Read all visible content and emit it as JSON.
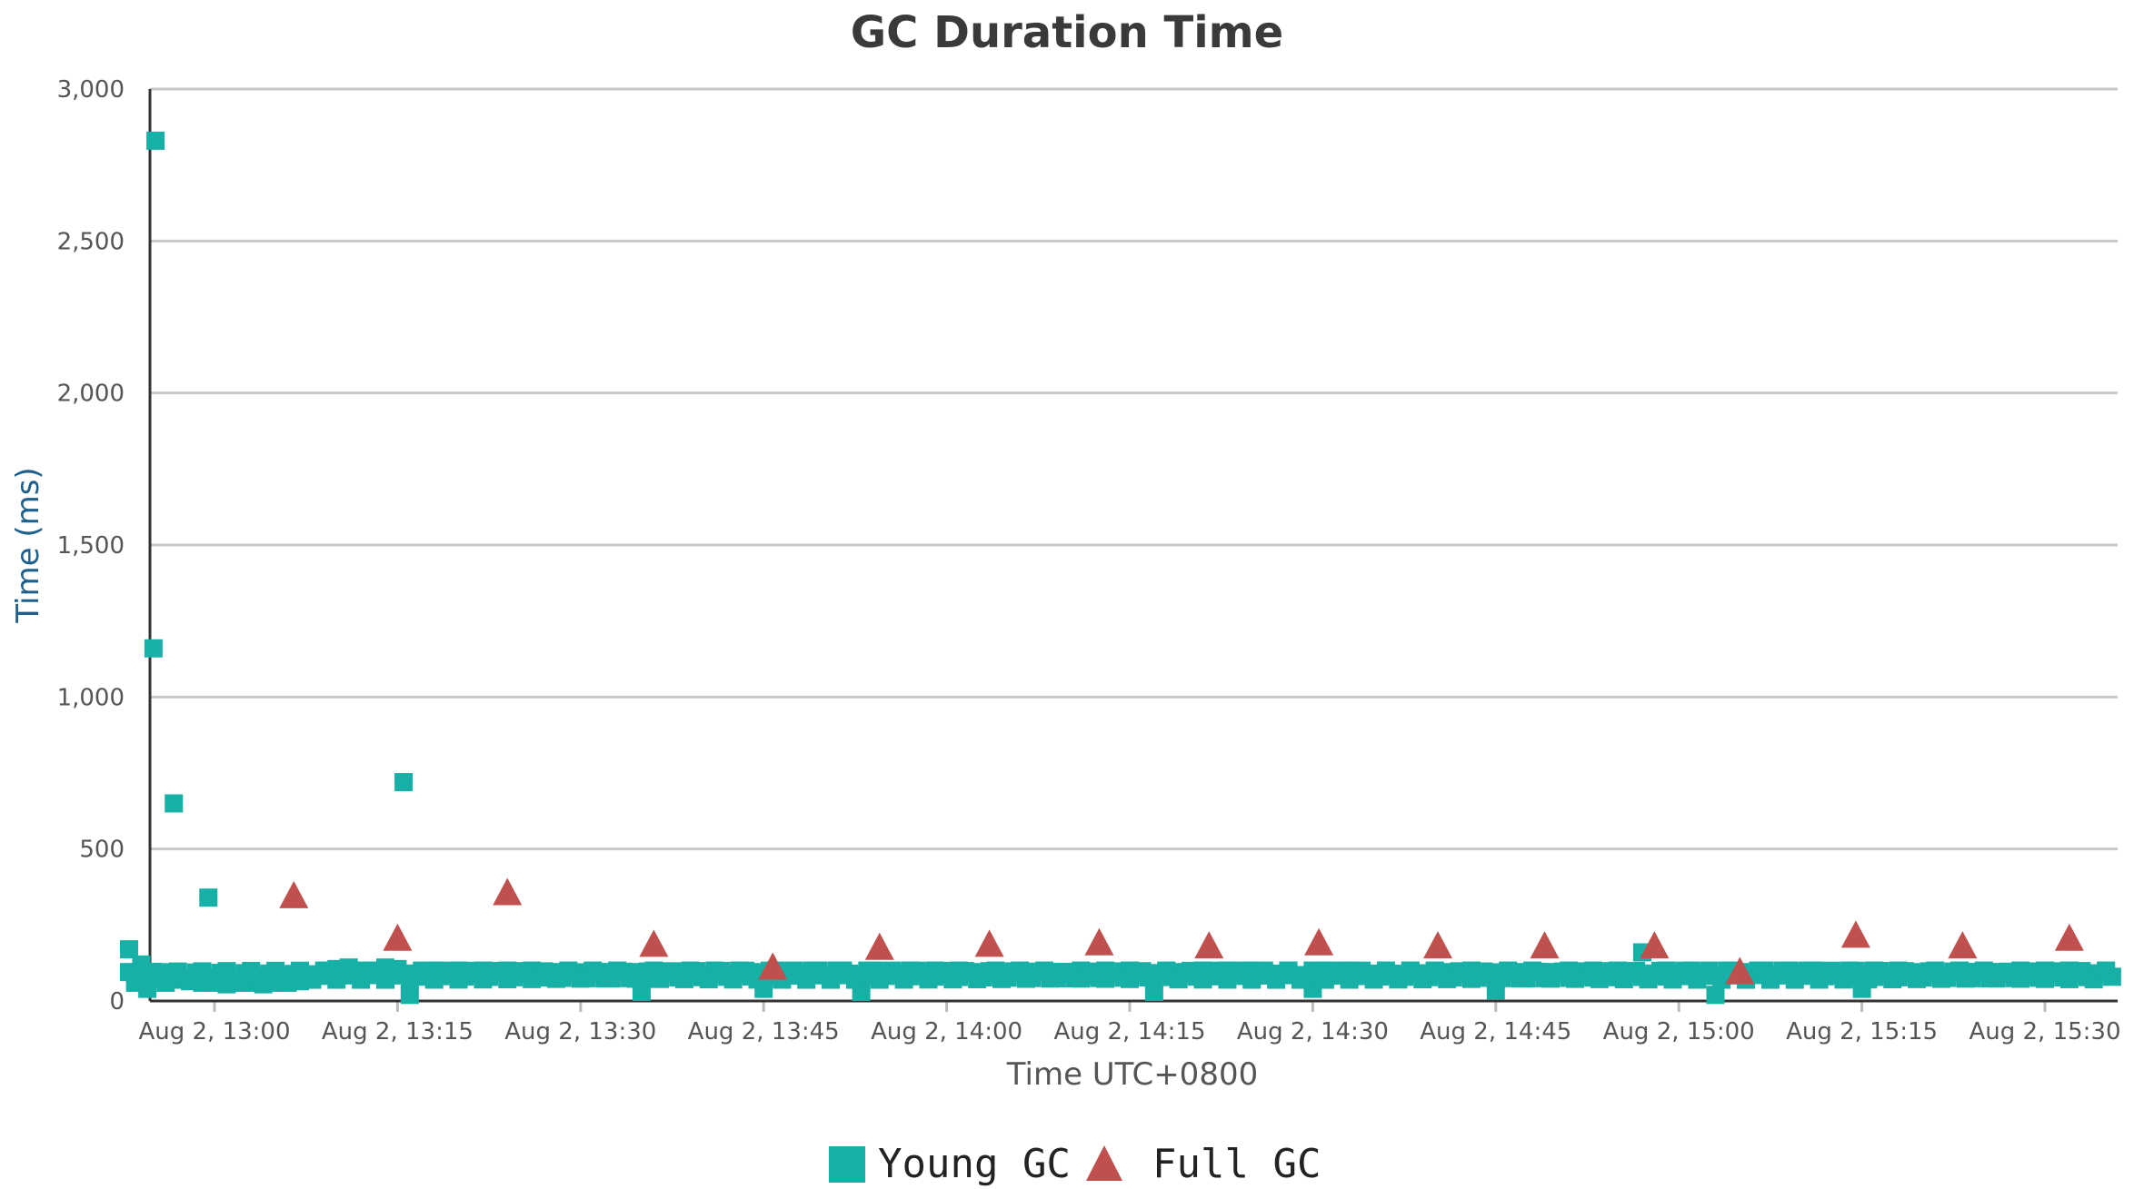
{
  "chart_data": {
    "type": "scatter",
    "title": "GC Duration Time",
    "xlabel": "Time UTC+0800",
    "ylabel": "Time (ms)",
    "ylim": [
      0,
      3000
    ],
    "xlim": [
      "12:53",
      "15:36"
    ],
    "grid": true,
    "legend_position": "bottom-center",
    "y_ticks": [
      {
        "value": 0,
        "label": "0"
      },
      {
        "value": 500,
        "label": "500"
      },
      {
        "value": 1000,
        "label": "1,000"
      },
      {
        "value": 1500,
        "label": "1,500"
      },
      {
        "value": 2000,
        "label": "2,000"
      },
      {
        "value": 2500,
        "label": "2,500"
      },
      {
        "value": 3000,
        "label": "3,000"
      }
    ],
    "x_ticks": [
      {
        "value": "13:00",
        "label": "Aug 2, 13:00"
      },
      {
        "value": "13:15",
        "label": "Aug 2, 13:15"
      },
      {
        "value": "13:30",
        "label": "Aug 2, 13:30"
      },
      {
        "value": "13:45",
        "label": "Aug 2, 13:45"
      },
      {
        "value": "14:00",
        "label": "Aug 2, 14:00"
      },
      {
        "value": "14:15",
        "label": "Aug 2, 14:15"
      },
      {
        "value": "14:30",
        "label": "Aug 2, 14:30"
      },
      {
        "value": "14:45",
        "label": "Aug 2, 14:45"
      },
      {
        "value": "15:00",
        "label": "Aug 2, 15:00"
      },
      {
        "value": "15:15",
        "label": "Aug 2, 15:15"
      },
      {
        "value": "15:30",
        "label": "Aug 2, 15:30"
      }
    ],
    "series": [
      {
        "name": "Young GC",
        "marker": "square",
        "color": "#17b0a6",
        "points": [
          [
            "12:53:00",
            170
          ],
          [
            "12:53:30",
            60
          ],
          [
            "12:54:00",
            120
          ],
          [
            "12:54:30",
            40
          ],
          [
            "12:55:00",
            80
          ],
          [
            "12:55:10",
            2830
          ],
          [
            "12:55:00",
            1160
          ],
          [
            "12:56:40",
            650
          ],
          [
            "12:59:30",
            340
          ],
          [
            "12:56:00",
            60
          ],
          [
            "12:57:00",
            70
          ],
          [
            "12:58:00",
            65
          ],
          [
            "12:59:00",
            60
          ],
          [
            "13:00:00",
            60
          ],
          [
            "13:01:00",
            55
          ],
          [
            "13:02:00",
            60
          ],
          [
            "13:03:00",
            60
          ],
          [
            "13:04:00",
            55
          ],
          [
            "13:05:00",
            60
          ],
          [
            "13:06:00",
            60
          ],
          [
            "13:07:00",
            65
          ],
          [
            "13:08:00",
            70
          ],
          [
            "13:09:00",
            100
          ],
          [
            "13:10:00",
            105
          ],
          [
            "13:11:00",
            110
          ],
          [
            "13:12:00",
            100
          ],
          [
            "13:13:00",
            90
          ],
          [
            "13:14:00",
            110
          ],
          [
            "13:15:00",
            105
          ],
          [
            "13:15:30",
            720
          ],
          [
            "13:16:00",
            20
          ],
          [
            "13:16:30",
            90
          ],
          [
            "13:17:00",
            80
          ],
          [
            "13:18:00",
            100
          ],
          [
            "13:19:00",
            95
          ],
          [
            "13:20:00",
            100
          ],
          [
            "13:21:00",
            90
          ],
          [
            "13:22:00",
            100
          ],
          [
            "13:23:00",
            95
          ],
          [
            "13:24:00",
            100
          ],
          [
            "13:25:00",
            90
          ],
          [
            "13:26:00",
            100
          ],
          [
            "13:27:00",
            80
          ],
          [
            "13:28:00",
            95
          ],
          [
            "13:29:00",
            100
          ],
          [
            "13:30:00",
            85
          ],
          [
            "13:31:00",
            100
          ],
          [
            "13:32:00",
            90
          ],
          [
            "13:33:00",
            100
          ],
          [
            "13:34:00",
            95
          ],
          [
            "13:35:00",
            30
          ],
          [
            "13:36:00",
            100
          ],
          [
            "13:37:00",
            95
          ],
          [
            "13:38:00",
            90
          ],
          [
            "13:39:00",
            100
          ],
          [
            "13:40:00",
            85
          ],
          [
            "13:41:00",
            100
          ],
          [
            "13:42:00",
            90
          ],
          [
            "13:43:00",
            100
          ],
          [
            "13:44:00",
            95
          ],
          [
            "13:45:00",
            40
          ],
          [
            "13:46:00",
            100
          ],
          [
            "13:47:00",
            95
          ],
          [
            "13:48:00",
            90
          ],
          [
            "13:49:00",
            100
          ],
          [
            "13:50:00",
            85
          ],
          [
            "13:51:00",
            100
          ],
          [
            "13:52:00",
            90
          ],
          [
            "13:53:00",
            30
          ],
          [
            "13:54:00",
            100
          ],
          [
            "13:55:00",
            95
          ],
          [
            "13:56:00",
            90
          ],
          [
            "13:57:00",
            100
          ],
          [
            "13:58:00",
            85
          ],
          [
            "13:59:00",
            100
          ],
          [
            "14:00:00",
            90
          ],
          [
            "14:01:00",
            100
          ],
          [
            "14:02:00",
            95
          ],
          [
            "14:03:00",
            90
          ],
          [
            "14:04:00",
            100
          ],
          [
            "14:05:00",
            85
          ],
          [
            "14:06:00",
            100
          ],
          [
            "14:07:00",
            90
          ],
          [
            "14:08:00",
            100
          ],
          [
            "14:09:00",
            95
          ],
          [
            "14:10:00",
            90
          ],
          [
            "14:11:00",
            100
          ],
          [
            "14:12:00",
            85
          ],
          [
            "14:13:00",
            100
          ],
          [
            "14:14:00",
            90
          ],
          [
            "14:15:00",
            100
          ],
          [
            "14:16:00",
            95
          ],
          [
            "14:17:00",
            30
          ],
          [
            "14:18:00",
            100
          ],
          [
            "14:19:00",
            95
          ],
          [
            "14:20:00",
            90
          ],
          [
            "14:21:00",
            100
          ],
          [
            "14:22:00",
            85
          ],
          [
            "14:23:00",
            100
          ],
          [
            "14:24:00",
            90
          ],
          [
            "14:25:00",
            100
          ],
          [
            "14:26:00",
            95
          ],
          [
            "14:27:00",
            90
          ],
          [
            "14:28:00",
            100
          ],
          [
            "14:29:00",
            85
          ],
          [
            "14:30:00",
            40
          ],
          [
            "14:31:00",
            100
          ],
          [
            "14:32:00",
            90
          ],
          [
            "14:33:00",
            100
          ],
          [
            "14:34:00",
            95
          ],
          [
            "14:35:00",
            90
          ],
          [
            "14:36:00",
            100
          ],
          [
            "14:37:00",
            85
          ],
          [
            "14:38:00",
            100
          ],
          [
            "14:39:00",
            90
          ],
          [
            "14:40:00",
            100
          ],
          [
            "14:41:00",
            95
          ],
          [
            "14:42:00",
            90
          ],
          [
            "14:43:00",
            100
          ],
          [
            "14:44:00",
            85
          ],
          [
            "14:45:00",
            35
          ],
          [
            "14:46:00",
            100
          ],
          [
            "14:47:00",
            90
          ],
          [
            "14:48:00",
            100
          ],
          [
            "14:49:00",
            95
          ],
          [
            "14:50:00",
            90
          ],
          [
            "14:51:00",
            100
          ],
          [
            "14:52:00",
            85
          ],
          [
            "14:53:00",
            100
          ],
          [
            "14:54:00",
            90
          ],
          [
            "14:55:00",
            100
          ],
          [
            "14:56:00",
            95
          ],
          [
            "14:57:00",
            160
          ],
          [
            "14:58:00",
            90
          ],
          [
            "14:59:00",
            100
          ],
          [
            "15:00:00",
            85
          ],
          [
            "15:01:00",
            100
          ],
          [
            "15:02:00",
            90
          ],
          [
            "15:03:00",
            20
          ],
          [
            "15:04:00",
            100
          ],
          [
            "15:05:00",
            95
          ],
          [
            "15:06:00",
            90
          ],
          [
            "15:07:00",
            100
          ],
          [
            "15:08:00",
            85
          ],
          [
            "15:09:00",
            100
          ],
          [
            "15:10:00",
            90
          ],
          [
            "15:11:00",
            100
          ],
          [
            "15:12:00",
            95
          ],
          [
            "15:13:00",
            90
          ],
          [
            "15:14:00",
            100
          ],
          [
            "15:15:00",
            40
          ],
          [
            "15:16:00",
            100
          ],
          [
            "15:17:00",
            90
          ],
          [
            "15:18:00",
            100
          ],
          [
            "15:19:00",
            95
          ],
          [
            "15:20:00",
            90
          ],
          [
            "15:21:00",
            100
          ],
          [
            "15:22:00",
            85
          ],
          [
            "15:23:00",
            100
          ],
          [
            "15:24:00",
            90
          ],
          [
            "15:25:00",
            100
          ],
          [
            "15:26:00",
            95
          ],
          [
            "15:27:00",
            90
          ],
          [
            "15:28:00",
            100
          ],
          [
            "15:29:00",
            85
          ],
          [
            "15:30:00",
            100
          ],
          [
            "15:31:00",
            90
          ],
          [
            "15:32:00",
            100
          ],
          [
            "15:33:00",
            95
          ],
          [
            "15:34:00",
            90
          ],
          [
            "15:35:00",
            100
          ]
        ]
      },
      {
        "name": "Full GC",
        "marker": "triangle",
        "color": "#c0504d",
        "points": [
          [
            "13:06:30",
            350
          ],
          [
            "13:15:00",
            210
          ],
          [
            "13:24:00",
            360
          ],
          [
            "13:36:00",
            190
          ],
          [
            "13:45:45",
            115
          ],
          [
            "13:54:30",
            180
          ],
          [
            "14:03:30",
            190
          ],
          [
            "14:12:30",
            195
          ],
          [
            "14:21:30",
            185
          ],
          [
            "14:30:30",
            195
          ],
          [
            "14:40:15",
            185
          ],
          [
            "14:49:00",
            185
          ],
          [
            "14:58:00",
            185
          ],
          [
            "15:05:00",
            100
          ],
          [
            "15:14:30",
            220
          ],
          [
            "15:23:15",
            185
          ],
          [
            "15:32:00",
            210
          ]
        ]
      }
    ]
  }
}
